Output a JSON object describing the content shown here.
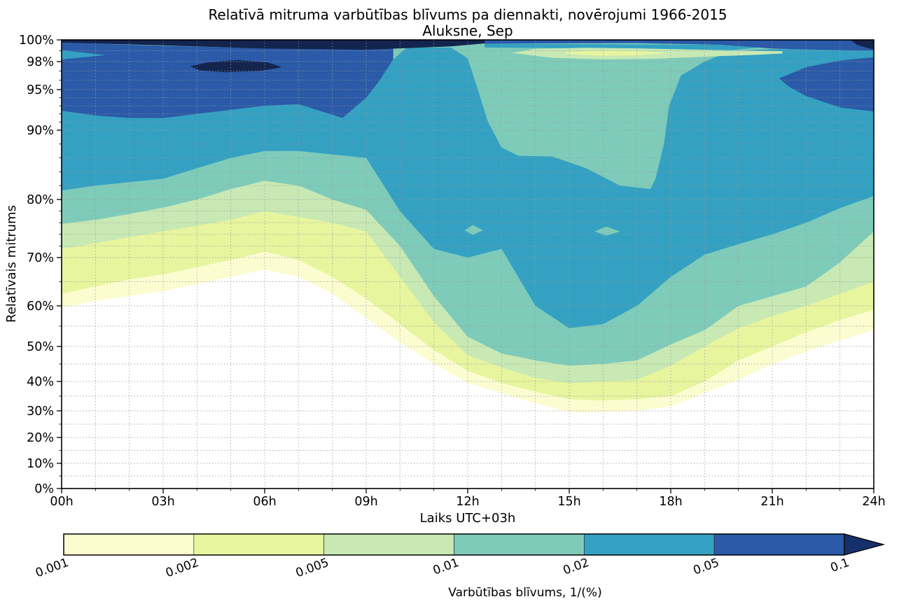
{
  "title": "Relatīvā mitruma varbūtības blīvums pa diennakti, novērojumi 1966-2015",
  "subtitle": "Aluksne, Sep",
  "axes": {
    "ylabel": "Relatīvais mitrums",
    "xlabel": "Laiks UTC+03h",
    "yticks": [
      {
        "v": 0,
        "label": "0%"
      },
      {
        "v": 10,
        "label": "10%"
      },
      {
        "v": 20,
        "label": "20%"
      },
      {
        "v": 30,
        "label": "30%"
      },
      {
        "v": 40,
        "label": "40%"
      },
      {
        "v": 50,
        "label": "50%"
      },
      {
        "v": 60,
        "label": "60%"
      },
      {
        "v": 70,
        "label": "70%"
      },
      {
        "v": 80,
        "label": "80%"
      },
      {
        "v": 90,
        "label": "90%"
      },
      {
        "v": 95,
        "label": "95%"
      },
      {
        "v": 98,
        "label": "98%"
      },
      {
        "v": 100,
        "label": "100%"
      }
    ],
    "xticks": [
      {
        "v": 0,
        "label": "00h"
      },
      {
        "v": 3,
        "label": "03h"
      },
      {
        "v": 6,
        "label": "06h"
      },
      {
        "v": 9,
        "label": "09h"
      },
      {
        "v": 12,
        "label": "12h"
      },
      {
        "v": 15,
        "label": "15h"
      },
      {
        "v": 18,
        "label": "18h"
      },
      {
        "v": 21,
        "label": "21h"
      },
      {
        "v": 24,
        "label": "24h"
      }
    ]
  },
  "colorbar": {
    "label": "Varbūtības blīvums, 1/(%)",
    "tick_labels": [
      "0.001",
      "0.002",
      "0.005",
      "0.01",
      "0.02",
      "0.05",
      "0.1"
    ],
    "segment_colors": [
      "#fbfdd1",
      "#e7f59f",
      "#c8e9b4",
      "#7ecbba",
      "#34a1c2",
      "#2a5aa8"
    ],
    "arrow_color": "#16306b"
  },
  "chart_data": {
    "type": "filled_contour",
    "title": "Relatīvā mitruma varbūtības blīvums pa diennakti, novērojumi 1966-2015",
    "subtitle": "Aluksne, Sep",
    "xlabel": "Laiks UTC+03h",
    "ylabel": "Relatīvais mitrums",
    "units": "probability density 1/(%)",
    "x_range": [
      0,
      24
    ],
    "x_hours": [
      0,
      1,
      2,
      3,
      4,
      5,
      6,
      7,
      8,
      9,
      10,
      11,
      12,
      13,
      14,
      15,
      16,
      17,
      18,
      19,
      20,
      21,
      22,
      23,
      24
    ],
    "levels": [
      0.001,
      0.002,
      0.005,
      0.01,
      0.02,
      0.05,
      0.1
    ],
    "colors": {
      "c001": "#fbfdd1",
      "c002": "#e7f59f",
      "c005": "#c8e9b4",
      "c01": "#7ecbba",
      "c02": "#34a1c2",
      "c05": "#2a5aa8",
      "c10": "#13244f"
    },
    "y_scale_points": [
      [
        0,
        698
      ],
      [
        10,
        662
      ],
      [
        20,
        625
      ],
      [
        30,
        587
      ],
      [
        40,
        545
      ],
      [
        50,
        495
      ],
      [
        60,
        437
      ],
      [
        70,
        368
      ],
      [
        80,
        285
      ],
      [
        90,
        186
      ],
      [
        95,
        128
      ],
      [
        98,
        88
      ],
      [
        100,
        57
      ]
    ],
    "stacked_bands": [
      {
        "level": 0.001,
        "color_key": "c001",
        "lower_boundary": [
          59.5,
          61,
          62,
          63,
          64.5,
          66,
          67.5,
          66,
          62.5,
          57,
          51,
          45,
          39.5,
          36,
          32.5,
          29.5,
          29.5,
          30,
          31.5,
          36,
          40.5,
          45,
          48.5,
          51.5,
          54
        ]
      },
      {
        "level": 0.002,
        "color_key": "c002",
        "lower_boundary": [
          62.5,
          64,
          65.5,
          66.5,
          68,
          69.5,
          71,
          69.5,
          66,
          61.5,
          55.5,
          49,
          43,
          39.5,
          36.5,
          34,
          33.5,
          34,
          35,
          40,
          46,
          50,
          53.5,
          56.5,
          59
        ]
      },
      {
        "level": 0.005,
        "color_key": "c005",
        "lower_boundary": [
          71.5,
          72.5,
          73.5,
          74.5,
          75.5,
          76.5,
          78,
          77,
          76,
          74.5,
          66,
          56,
          47.5,
          44,
          41,
          39.5,
          40,
          40.5,
          44.5,
          50,
          54.5,
          57.5,
          60,
          62.5,
          65
        ]
      },
      {
        "level": 0.01,
        "color_key": "c01",
        "lower_boundary": [
          75.8,
          76.5,
          77.5,
          78.6,
          80,
          81.5,
          82.7,
          82,
          80,
          78.2,
          72,
          62,
          52.4,
          48,
          46,
          44.5,
          45,
          46,
          50.5,
          54,
          60,
          62,
          64,
          69,
          74.5
        ]
      }
    ],
    "cyan_band": {
      "level": 0.02,
      "color_key": "c02",
      "lower_boundary": [
        81.3,
        82,
        82.5,
        83,
        84.5,
        86,
        87,
        87,
        86.5,
        86,
        78,
        71.5,
        70,
        71.5,
        60,
        54.5,
        55.5,
        60,
        66,
        70.5,
        72.3,
        74,
        76,
        78.5,
        80.5
      ],
      "upper_boundary": [
        [
          24,
          99.2
        ],
        [
          21,
          99.15
        ],
        [
          19.8,
          99.0
        ],
        [
          19.0,
          98.0
        ],
        [
          18.3,
          96.5
        ],
        [
          17.95,
          93
        ],
        [
          17.8,
          88
        ],
        [
          17.55,
          83
        ],
        [
          17.4,
          81.5
        ],
        [
          16.5,
          82
        ],
        [
          15.5,
          84.5
        ],
        [
          14.5,
          86.2
        ],
        [
          13.5,
          86.3
        ],
        [
          13.0,
          87.5
        ],
        [
          12.6,
          91
        ],
        [
          12.3,
          95
        ],
        [
          12.0,
          98.3
        ],
        [
          11.5,
          99.3
        ],
        [
          10.2,
          99.3
        ],
        [
          9.8,
          98.2
        ],
        [
          9.4,
          96
        ],
        [
          9.0,
          94
        ],
        [
          8.3,
          91.5
        ],
        [
          7,
          93.2
        ],
        [
          6,
          93
        ],
        [
          5,
          92.5
        ],
        [
          4,
          92
        ],
        [
          3,
          91.5
        ],
        [
          2,
          91.5
        ],
        [
          1,
          91.8
        ],
        [
          0,
          92.4
        ]
      ]
    },
    "overlays": [
      {
        "name": "blue-region-night",
        "level": 0.05,
        "color_key": "c05",
        "points": [
          [
            0,
            92.4
          ],
          [
            1,
            91.8
          ],
          [
            2,
            91.5
          ],
          [
            3,
            91.5
          ],
          [
            4,
            92
          ],
          [
            5,
            92.5
          ],
          [
            6,
            93
          ],
          [
            7,
            93.2
          ],
          [
            8.3,
            91.5
          ],
          [
            9,
            94
          ],
          [
            9.4,
            96
          ],
          [
            9.8,
            98.2
          ],
          [
            9.8,
            99.35
          ],
          [
            8,
            99.2
          ],
          [
            5,
            99.3
          ],
          [
            2,
            99.55
          ],
          [
            0,
            99.75
          ]
        ]
      },
      {
        "name": "navy-top-strip-left",
        "level": 0.1,
        "color_key": "c10",
        "points": [
          [
            0,
            99.75
          ],
          [
            3,
            99.5
          ],
          [
            6,
            99.2
          ],
          [
            9,
            99.1
          ],
          [
            11.5,
            99.4
          ],
          [
            12.6,
            99.7
          ],
          [
            12.6,
            100
          ],
          [
            0,
            100
          ]
        ]
      },
      {
        "name": "cyan-wedge-top-left",
        "level": 0.02,
        "color_key": "c02",
        "points": [
          [
            0,
            99.05
          ],
          [
            1.3,
            98.6
          ],
          [
            0,
            98.2
          ]
        ]
      },
      {
        "name": "navy-blob-early-morning",
        "level": 0.1,
        "color_key": "c10",
        "points": [
          [
            3.8,
            97.5
          ],
          [
            4.3,
            97.9
          ],
          [
            5.2,
            98.15
          ],
          [
            6.1,
            97.9
          ],
          [
            6.5,
            97.4
          ],
          [
            5.9,
            97.0
          ],
          [
            4.8,
            96.85
          ],
          [
            4.1,
            97.05
          ]
        ]
      },
      {
        "name": "cyan-top-strip-center",
        "level": 0.02,
        "color_key": "c02",
        "points": [
          [
            12.5,
            99.3
          ],
          [
            16,
            99.2
          ],
          [
            19.8,
            99.05
          ],
          [
            20.6,
            99.3
          ],
          [
            20,
            99.55
          ],
          [
            16,
            99.6
          ],
          [
            12.5,
            99.65
          ]
        ]
      },
      {
        "name": "blue-top-strip-right",
        "level": 0.05,
        "color_key": "c05",
        "points": [
          [
            12.5,
            99.65
          ],
          [
            17,
            99.7
          ],
          [
            19.5,
            99.55
          ],
          [
            21,
            99.2
          ],
          [
            23,
            99.05
          ],
          [
            24,
            99.0
          ],
          [
            24,
            100
          ],
          [
            12.5,
            100
          ]
        ]
      },
      {
        "name": "navy-top-right-corner",
        "level": 0.1,
        "color_key": "c10",
        "points": [
          [
            23.3,
            100
          ],
          [
            24,
            100
          ],
          [
            24,
            99.1
          ],
          [
            23.5,
            99.55
          ]
        ]
      },
      {
        "name": "green-lens-top-afternoon",
        "level": 0.005,
        "color_key": "c005",
        "points": [
          [
            13.3,
            98.8
          ],
          [
            14.5,
            98.35
          ],
          [
            16,
            98.2
          ],
          [
            17.5,
            98.25
          ],
          [
            19,
            98.45
          ],
          [
            20.5,
            98.62
          ],
          [
            21.3,
            98.75
          ],
          [
            21.3,
            98.95
          ],
          [
            20,
            99.02
          ],
          [
            18.5,
            99.12
          ],
          [
            17,
            99.22
          ],
          [
            15.5,
            99.28
          ],
          [
            14,
            99.18
          ]
        ]
      },
      {
        "name": "yellowgreen-lens-top-afternoon",
        "level": 0.002,
        "color_key": "c002",
        "points": [
          [
            14.9,
            98.73
          ],
          [
            16,
            98.53
          ],
          [
            17,
            98.58
          ],
          [
            17.9,
            98.78
          ],
          [
            17,
            98.98
          ],
          [
            16,
            99.03
          ],
          [
            14.9,
            98.88
          ]
        ]
      },
      {
        "name": "blue-region-evening-right",
        "level": 0.05,
        "color_key": "c05",
        "points": [
          [
            21.2,
            96.2
          ],
          [
            22,
            97.4
          ],
          [
            23,
            98.1
          ],
          [
            24,
            98.4
          ],
          [
            24,
            92.3
          ],
          [
            23,
            92.8
          ],
          [
            22,
            94.2
          ],
          [
            21.5,
            95.3
          ]
        ]
      },
      {
        "name": "teal-diamond-12h",
        "level": 0.01,
        "color_key": "c01",
        "points": [
          [
            11.9,
            74.7
          ],
          [
            12.15,
            75.6
          ],
          [
            12.45,
            74.7
          ],
          [
            12.15,
            73.9
          ]
        ]
      },
      {
        "name": "teal-diamond-16h",
        "level": 0.01,
        "color_key": "c01",
        "points": [
          [
            15.75,
            74.5
          ],
          [
            16.1,
            75.35
          ],
          [
            16.5,
            74.5
          ],
          [
            16.1,
            73.75
          ]
        ]
      }
    ],
    "grid": {
      "x_step_hours": 1,
      "y_lines": [
        5,
        10,
        15,
        20,
        25,
        30,
        35,
        40,
        45,
        50,
        55,
        60,
        65,
        70,
        72,
        74,
        76,
        78,
        80,
        82,
        84,
        86,
        88,
        90,
        91,
        92,
        93,
        94,
        95,
        96,
        97,
        98,
        99
      ]
    },
    "legend_position": "bottom-colorbar",
    "colorbar_tick_values": [
      0.001,
      0.002,
      0.005,
      0.01,
      0.02,
      0.05,
      0.1
    ]
  }
}
